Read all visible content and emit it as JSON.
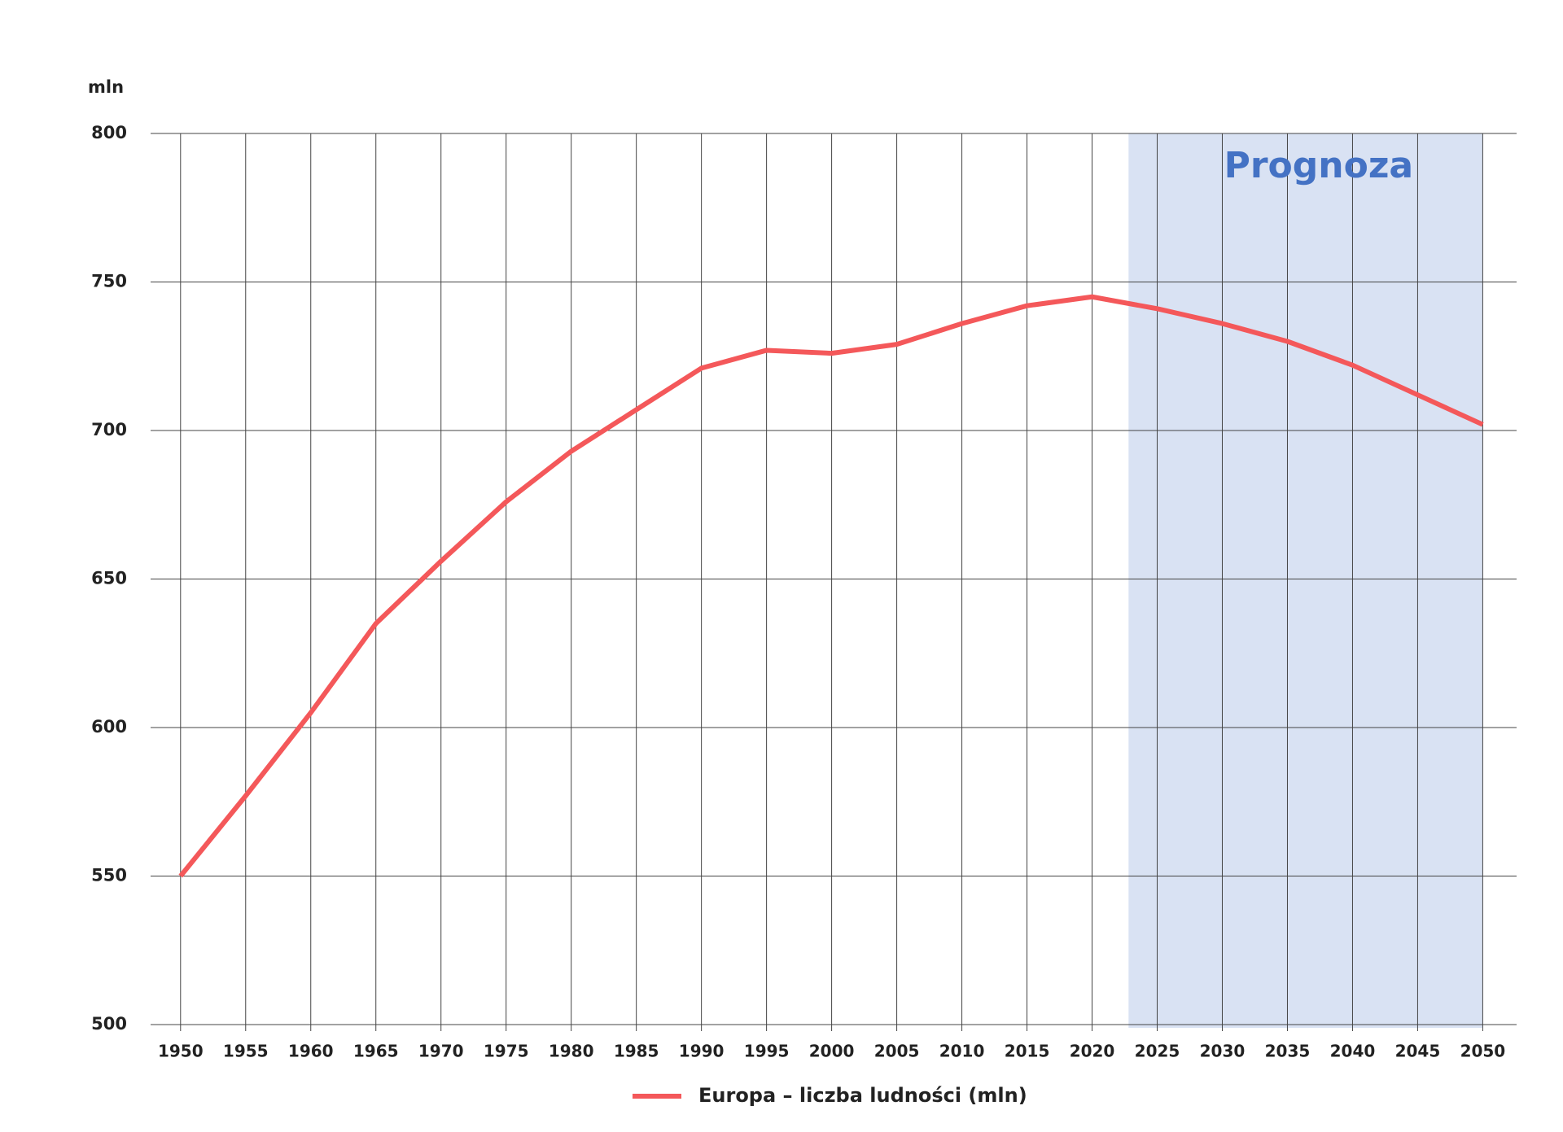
{
  "chart_data": {
    "type": "line",
    "y_unit_label": "mln",
    "annotation": "Prognoza",
    "forecast_region": [
      2022.8,
      2050
    ],
    "forecast_color": "#d9e2f3",
    "annotation_color": "#4472c4",
    "x": [
      1950,
      1955,
      1960,
      1965,
      1970,
      1975,
      1980,
      1985,
      1990,
      1995,
      2000,
      2005,
      2010,
      2015,
      2020,
      2025,
      2030,
      2035,
      2040,
      2045,
      2050
    ],
    "series": [
      {
        "name": "Europa – liczba ludności (mln)",
        "color": "#f4585a",
        "values": [
          550,
          577,
          605,
          635,
          656,
          676,
          693,
          707,
          721,
          727,
          726,
          729,
          736,
          742,
          745,
          741,
          736,
          730,
          722,
          712,
          702
        ]
      }
    ],
    "xlim": [
      1947.7,
      2052.6
    ],
    "xticks": [
      1950,
      1955,
      1960,
      1965,
      1970,
      1975,
      1980,
      1985,
      1990,
      1995,
      2000,
      2005,
      2010,
      2015,
      2020,
      2025,
      2030,
      2035,
      2040,
      2045,
      2050
    ],
    "ylim": [
      500,
      800
    ],
    "yticks": [
      500,
      550,
      600,
      650,
      700,
      750,
      800
    ],
    "grid": true,
    "legend": "bottom"
  }
}
